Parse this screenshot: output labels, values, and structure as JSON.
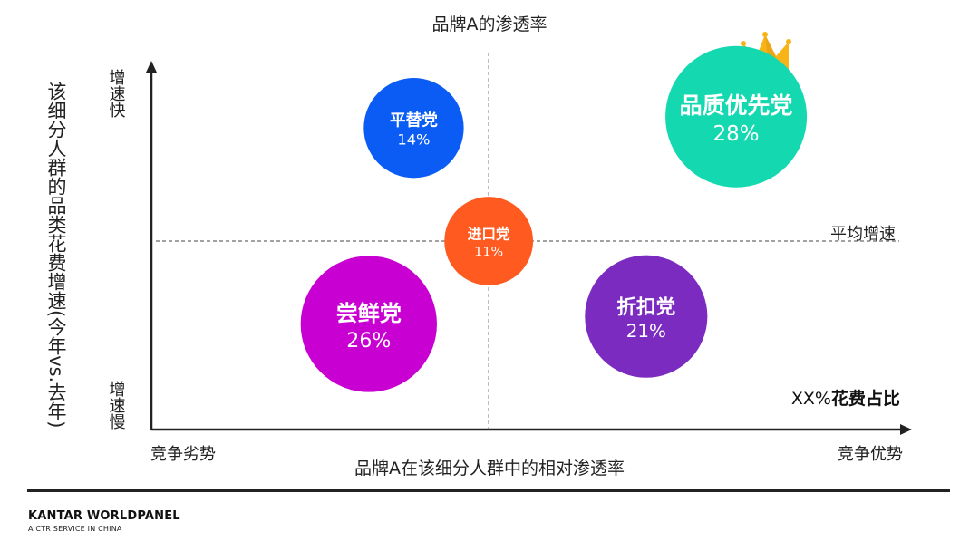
{
  "chart_data": {
    "type": "scatter",
    "subtype": "bubble",
    "title": "品牌A的渗透率",
    "xlabel": "品牌A在该细分人群中的相对渗透率",
    "ylabel": "该细分人群的品类花费增速(今年vs.去年)",
    "x_low_label": "竞争劣势",
    "x_high_label": "竞争优势",
    "y_high_label": "增速快",
    "y_low_label": "增速慢",
    "avg_line_label": "平均增速",
    "size_legend_prefix": "XX%",
    "size_legend_label": "花费占比",
    "xlim": [
      0,
      1
    ],
    "ylim": [
      0,
      1
    ],
    "x_divider": 0.45,
    "y_divider": 0.5,
    "points": [
      {
        "name": "平替党",
        "value_label": "14%",
        "value": 14,
        "x": 0.35,
        "y": 0.8,
        "color": "#0A5CF5"
      },
      {
        "name": "品质优先党",
        "value_label": "28%",
        "value": 28,
        "x": 0.78,
        "y": 0.83,
        "color": "#14D9B0",
        "crown": true
      },
      {
        "name": "进口党",
        "value_label": "11%",
        "value": 11,
        "x": 0.45,
        "y": 0.5,
        "color": "#FF5A1F"
      },
      {
        "name": "尝鲜党",
        "value_label": "26%",
        "value": 26,
        "x": 0.29,
        "y": 0.28,
        "color": "#C800D2"
      },
      {
        "name": "折扣党",
        "value_label": "21%",
        "value": 21,
        "x": 0.66,
        "y": 0.3,
        "color": "#7B2BBF"
      }
    ]
  },
  "footer": {
    "brand": "KANTAR WORLDPANEL",
    "sub": "A CTR SERVICE IN CHINA"
  }
}
